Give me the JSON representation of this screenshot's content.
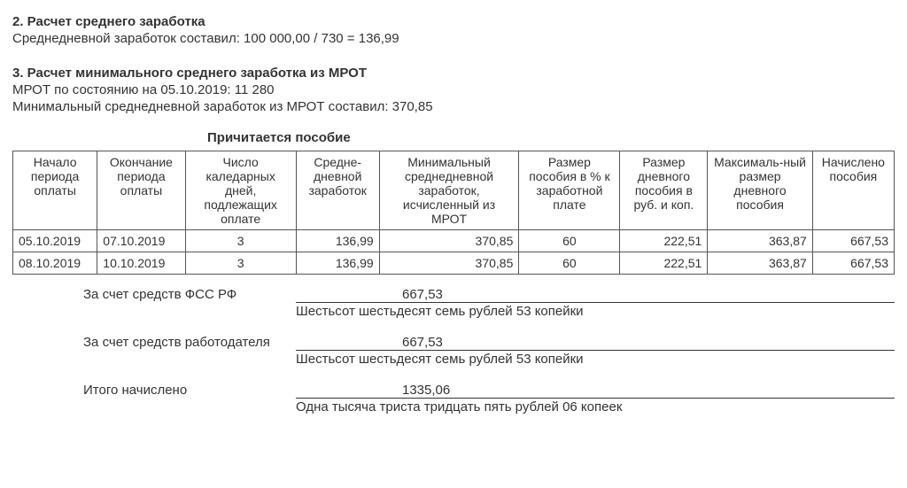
{
  "section2": {
    "title": "2. Расчет среднего заработка",
    "line": "Среднедневной заработок составил: 100 000,00 / 730 = 136,99"
  },
  "section3": {
    "title": "3. Расчет минимального среднего заработка из МРОТ",
    "line1": "МРОТ по состоянию на 05.10.2019: 11 280",
    "line2": "Минимальный среднедневной заработок из МРОТ составил: 370,85"
  },
  "benefit": {
    "title": "Причитается пособие",
    "columns": [
      "Начало периода оплаты",
      "Окончание периода оплаты",
      "Число каледарных дней, подлежащих оплате",
      "Средне-дневной заработок",
      "Минимальный среднедневной заработок, исчисленный из МРОТ",
      "Размер пособия в % к заработной плате",
      "Размер дневного пособия в руб. и коп.",
      "Максималь-ный размер дневного пособия",
      "Начислено пособия"
    ],
    "rows": [
      {
        "start": "05.10.2019",
        "end": "07.10.2019",
        "days": "3",
        "avg": "136,99",
        "mrotmin": "370,85",
        "pct": "60",
        "daily": "222,51",
        "maxdaily": "363,87",
        "accrued": "667,53"
      },
      {
        "start": "08.10.2019",
        "end": "10.10.2019",
        "days": "3",
        "avg": "136,99",
        "mrotmin": "370,85",
        "pct": "60",
        "daily": "222,51",
        "maxdaily": "363,87",
        "accrued": "667,53"
      }
    ]
  },
  "summary": {
    "fss": {
      "label": "За счет средств ФСС РФ",
      "amount": "667,53",
      "words": "Шестьсот шестьдесят семь рублей 53 копейки"
    },
    "employer": {
      "label": "За счет средств работодателя",
      "amount": "667,53",
      "words": "Шестьсот шестьдесят семь рублей 53 копейки"
    },
    "total": {
      "label": "Итого начислено",
      "amount": "1335,06",
      "words": "Одна тысяча триста тридцать пять рублей 06 копеек"
    }
  }
}
